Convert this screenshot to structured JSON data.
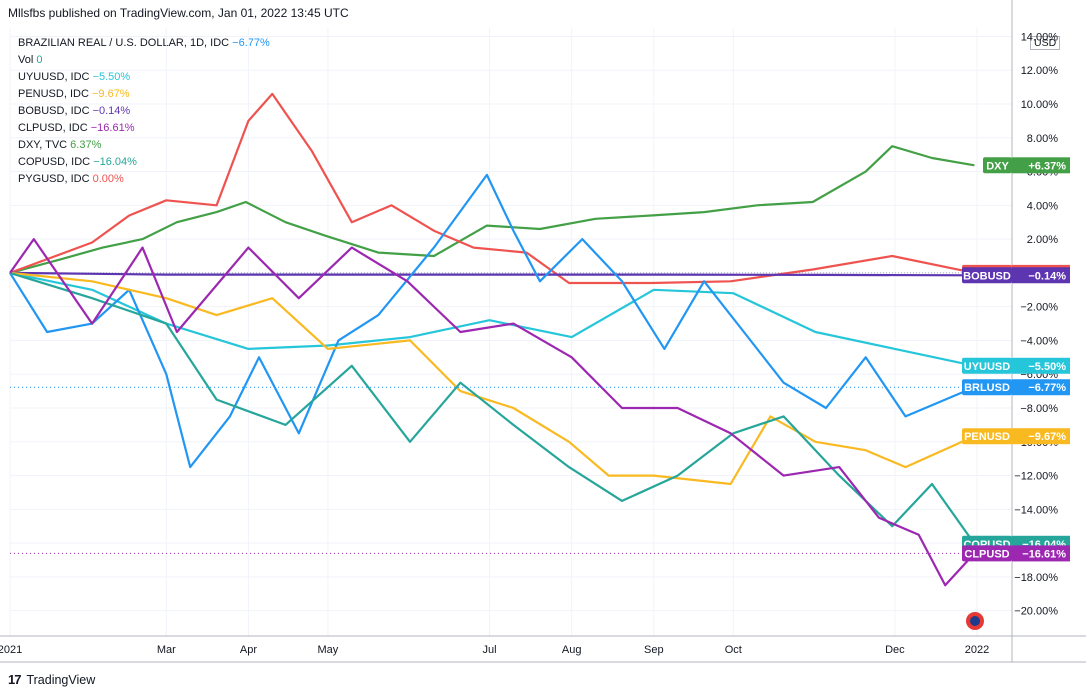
{
  "header": {
    "published": "Mllsfbs published on TradingView.com, Jan 01, 2022 13:45 UTC"
  },
  "legend": {
    "main": {
      "symbol": "BRAZILIAN REAL / U.S. DOLLAR, 1D, IDC",
      "value": "−6.77%",
      "color": "#2196f3"
    },
    "vol": {
      "label": "Vol",
      "value": "0"
    },
    "items": [
      {
        "symbol": "UYUUSD, IDC",
        "value": "−5.50%",
        "color": "#26c6da"
      },
      {
        "symbol": "PENUSD, IDC",
        "value": "−9.67%",
        "color": "#f9b920"
      },
      {
        "symbol": "BOBUSD, IDC",
        "value": "−0.14%",
        "color": "#5e35b1"
      },
      {
        "symbol": "CLPUSD, IDC",
        "value": "−16.61%",
        "color": "#9c27b0"
      },
      {
        "symbol": "DXY, TVC",
        "value": "6.37%",
        "color": "#43a047"
      },
      {
        "symbol": "COPUSD, IDC",
        "value": "−16.04%",
        "color": "#26a69a"
      },
      {
        "symbol": "PYGUSD, IDC",
        "value": "0.00%",
        "color": "#ef5350"
      }
    ]
  },
  "currency_label": "USD",
  "footer": {
    "brand": "TradingView"
  },
  "chart_data": {
    "type": "line",
    "ylabel": "",
    "ylim": [
      -21.5,
      14.5
    ],
    "y_ticks": [
      "14.00%",
      "12.00%",
      "10.00%",
      "8.00%",
      "6.00%",
      "4.00%",
      "2.00%",
      "",
      "−2.00%",
      "−4.00%",
      "−6.00%",
      "−8.00%",
      "−10.00%",
      "−12.00%",
      "−14.00%",
      "−16.00%",
      "−18.00%",
      "−20.00%"
    ],
    "y_tick_values": [
      14,
      12,
      10,
      8,
      6,
      4,
      2,
      0,
      -2,
      -4,
      -6,
      -8,
      -10,
      -12,
      -14,
      -16,
      -18,
      -20
    ],
    "x_ticks": [
      "2021",
      "Mar",
      "Apr",
      "May",
      "Jul",
      "Aug",
      "Sep",
      "Oct",
      "Dec",
      "2022"
    ],
    "x_tick_dates": [
      "2021-01-01",
      "2021-03-01",
      "2021-04-01",
      "2021-05-01",
      "2021-07-01",
      "2021-08-01",
      "2021-09-01",
      "2021-10-01",
      "2021-12-01",
      "2022-01-01"
    ],
    "series": [
      {
        "name": "DXY",
        "tag": "DXY",
        "tag_value": "+6.37%",
        "color": "#43a047",
        "last": 6.37,
        "points": [
          [
            "2021-01-01",
            0
          ],
          [
            "2021-01-20",
            0.8
          ],
          [
            "2021-02-05",
            1.5
          ],
          [
            "2021-02-20",
            2.0
          ],
          [
            "2021-03-05",
            3.0
          ],
          [
            "2021-03-20",
            3.6
          ],
          [
            "2021-03-31",
            4.2
          ],
          [
            "2021-04-15",
            3.0
          ],
          [
            "2021-04-30",
            2.2
          ],
          [
            "2021-05-20",
            1.2
          ],
          [
            "2021-06-10",
            1.0
          ],
          [
            "2021-06-30",
            2.8
          ],
          [
            "2021-07-20",
            2.6
          ],
          [
            "2021-08-10",
            3.2
          ],
          [
            "2021-08-31",
            3.4
          ],
          [
            "2021-09-20",
            3.6
          ],
          [
            "2021-10-10",
            4.0
          ],
          [
            "2021-10-31",
            4.2
          ],
          [
            "2021-11-20",
            6.0
          ],
          [
            "2021-11-30",
            7.5
          ],
          [
            "2021-12-15",
            6.8
          ],
          [
            "2021-12-31",
            6.37
          ]
        ]
      },
      {
        "name": "PYGUSD",
        "tag": "PYGUSD",
        "tag_value": "0.00%",
        "color": "#ef5350",
        "last": 0.0,
        "points": [
          [
            "2021-01-01",
            0
          ],
          [
            "2021-02-01",
            1.8
          ],
          [
            "2021-02-15",
            3.4
          ],
          [
            "2021-03-01",
            4.3
          ],
          [
            "2021-03-20",
            4.0
          ],
          [
            "2021-04-01",
            9.0
          ],
          [
            "2021-04-10",
            10.6
          ],
          [
            "2021-04-25",
            7.2
          ],
          [
            "2021-05-10",
            3.0
          ],
          [
            "2021-05-25",
            4.0
          ],
          [
            "2021-06-10",
            2.5
          ],
          [
            "2021-06-25",
            1.5
          ],
          [
            "2021-07-15",
            1.2
          ],
          [
            "2021-07-31",
            -0.6
          ],
          [
            "2021-08-31",
            -0.6
          ],
          [
            "2021-09-30",
            -0.5
          ],
          [
            "2021-10-31",
            0.2
          ],
          [
            "2021-11-30",
            1.0
          ],
          [
            "2021-12-31",
            0.0
          ]
        ]
      },
      {
        "name": "BOBUSD",
        "tag": "BOBUSD",
        "tag_value": "−0.14%",
        "color": "#5e35b1",
        "last": -0.14,
        "points": [
          [
            "2021-01-01",
            0
          ],
          [
            "2021-03-01",
            -0.1
          ],
          [
            "2021-05-01",
            -0.1
          ],
          [
            "2021-07-01",
            -0.1
          ],
          [
            "2021-09-01",
            -0.1
          ],
          [
            "2021-11-01",
            -0.12
          ],
          [
            "2021-12-31",
            -0.14
          ]
        ]
      },
      {
        "name": "UYUUSD",
        "tag": "UYUUSD",
        "tag_value": "−5.50%",
        "color": "#26c6da",
        "last": -5.5,
        "points": [
          [
            "2021-01-01",
            0
          ],
          [
            "2021-02-01",
            -1.0
          ],
          [
            "2021-03-01",
            -3.0
          ],
          [
            "2021-04-01",
            -4.5
          ],
          [
            "2021-05-01",
            -4.3
          ],
          [
            "2021-06-01",
            -3.8
          ],
          [
            "2021-07-01",
            -2.8
          ],
          [
            "2021-08-01",
            -3.8
          ],
          [
            "2021-09-01",
            -1.0
          ],
          [
            "2021-10-01",
            -1.2
          ],
          [
            "2021-11-01",
            -3.5
          ],
          [
            "2021-12-01",
            -4.5
          ],
          [
            "2021-12-31",
            -5.5
          ]
        ]
      },
      {
        "name": "BRLUSD",
        "tag": "BRLUSD",
        "tag_value": "−6.77%",
        "color": "#2196f3",
        "last": -6.77,
        "points": [
          [
            "2021-01-01",
            0
          ],
          [
            "2021-01-15",
            -3.5
          ],
          [
            "2021-02-01",
            -3.0
          ],
          [
            "2021-02-15",
            -1.0
          ],
          [
            "2021-03-01",
            -6.0
          ],
          [
            "2021-03-10",
            -11.5
          ],
          [
            "2021-03-25",
            -8.5
          ],
          [
            "2021-04-05",
            -5.0
          ],
          [
            "2021-04-20",
            -9.5
          ],
          [
            "2021-05-05",
            -4.0
          ],
          [
            "2021-05-20",
            -2.5
          ],
          [
            "2021-06-10",
            1.5
          ],
          [
            "2021-06-30",
            5.8
          ],
          [
            "2021-07-10",
            2.5
          ],
          [
            "2021-07-20",
            -0.5
          ],
          [
            "2021-08-05",
            2.0
          ],
          [
            "2021-08-20",
            -0.5
          ],
          [
            "2021-09-05",
            -4.5
          ],
          [
            "2021-09-20",
            -0.5
          ],
          [
            "2021-10-05",
            -3.5
          ],
          [
            "2021-10-20",
            -6.5
          ],
          [
            "2021-11-05",
            -8.0
          ],
          [
            "2021-11-20",
            -5.0
          ],
          [
            "2021-12-05",
            -8.5
          ],
          [
            "2021-12-20",
            -7.5
          ],
          [
            "2021-12-31",
            -6.77
          ]
        ]
      },
      {
        "name": "PENUSD",
        "tag": "PENUSD",
        "tag_value": "−9.67%",
        "color": "#f9b920",
        "last": -9.67,
        "points": [
          [
            "2021-01-01",
            0
          ],
          [
            "2021-02-01",
            -0.5
          ],
          [
            "2021-03-01",
            -1.5
          ],
          [
            "2021-03-20",
            -2.5
          ],
          [
            "2021-04-10",
            -1.5
          ],
          [
            "2021-05-01",
            -4.5
          ],
          [
            "2021-06-01",
            -4.0
          ],
          [
            "2021-06-20",
            -7.0
          ],
          [
            "2021-07-10",
            -8.0
          ],
          [
            "2021-07-31",
            -10.0
          ],
          [
            "2021-08-15",
            -12.0
          ],
          [
            "2021-09-01",
            -12.0
          ],
          [
            "2021-09-30",
            -12.5
          ],
          [
            "2021-10-15",
            -8.5
          ],
          [
            "2021-11-01",
            -10.0
          ],
          [
            "2021-11-20",
            -10.5
          ],
          [
            "2021-12-05",
            -11.5
          ],
          [
            "2021-12-31",
            -9.67
          ]
        ]
      },
      {
        "name": "COPUSD",
        "tag": "COPUSD",
        "tag_value": "−16.04%",
        "color": "#26a69a",
        "last": -16.04,
        "points": [
          [
            "2021-01-01",
            0
          ],
          [
            "2021-02-01",
            -1.5
          ],
          [
            "2021-03-01",
            -3.0
          ],
          [
            "2021-03-20",
            -7.5
          ],
          [
            "2021-04-15",
            -9.0
          ],
          [
            "2021-05-10",
            -5.5
          ],
          [
            "2021-06-01",
            -10.0
          ],
          [
            "2021-06-20",
            -6.5
          ],
          [
            "2021-07-10",
            -9.0
          ],
          [
            "2021-07-31",
            -11.5
          ],
          [
            "2021-08-20",
            -13.5
          ],
          [
            "2021-09-10",
            -12.0
          ],
          [
            "2021-10-01",
            -9.5
          ],
          [
            "2021-10-20",
            -8.5
          ],
          [
            "2021-11-10",
            -12.0
          ],
          [
            "2021-11-30",
            -15.0
          ],
          [
            "2021-12-15",
            -12.5
          ],
          [
            "2021-12-31",
            -16.04
          ]
        ]
      },
      {
        "name": "CLPUSD",
        "tag": "CLPUSD",
        "tag_value": "−16.61%",
        "color": "#9c27b0",
        "last": -16.61,
        "points": [
          [
            "2021-01-01",
            0
          ],
          [
            "2021-01-10",
            2.0
          ],
          [
            "2021-02-01",
            -3.0
          ],
          [
            "2021-02-20",
            1.5
          ],
          [
            "2021-03-05",
            -3.5
          ],
          [
            "2021-04-01",
            1.5
          ],
          [
            "2021-04-20",
            -1.5
          ],
          [
            "2021-05-10",
            1.5
          ],
          [
            "2021-05-31",
            -0.5
          ],
          [
            "2021-06-20",
            -3.5
          ],
          [
            "2021-07-10",
            -3.0
          ],
          [
            "2021-08-01",
            -5.0
          ],
          [
            "2021-08-20",
            -8.0
          ],
          [
            "2021-09-10",
            -8.0
          ],
          [
            "2021-09-30",
            -9.5
          ],
          [
            "2021-10-20",
            -12.0
          ],
          [
            "2021-11-10",
            -11.5
          ],
          [
            "2021-11-25",
            -14.5
          ],
          [
            "2021-12-10",
            -15.5
          ],
          [
            "2021-12-20",
            -18.5
          ],
          [
            "2021-12-31",
            -16.61
          ]
        ]
      }
    ]
  }
}
